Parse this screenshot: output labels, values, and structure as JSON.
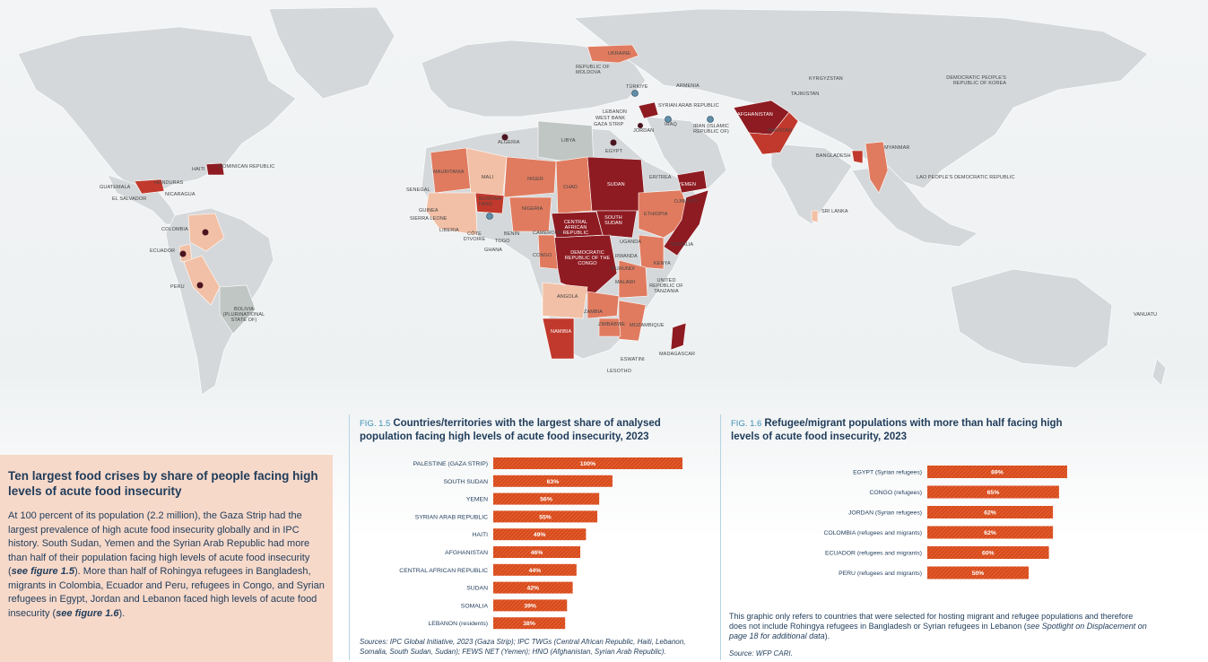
{
  "map": {
    "labels": {
      "ukraine": "UKRAINE",
      "moldova": "REPUBLIC OF MOLDOVA",
      "turkiye": "TÜRKIYE",
      "armenia": "ARMENIA",
      "kyrgyzstan": "KYRGYZSTAN",
      "tajikistan": "TAJIKISTAN",
      "dprk": "DEMOCRATIC PEOPLE'S REPUBLIC OF KOREA",
      "lebanon": "LEBANON",
      "west_bank": "WEST BANK",
      "gaza": "GAZA STRIP",
      "syria": "SYRIAN ARAB REPUBLIC",
      "iraq": "IRAQ",
      "iran": "IRAN (ISLAMIC REPUBLIC OF)",
      "afghanistan": "AFGHANISTAN",
      "pakistan": "PAKISTAN",
      "jordan": "JORDAN",
      "algeria": "ALGERIA",
      "libya": "LIBYA",
      "egypt": "EGYPT",
      "haiti": "HAITI",
      "dominican_republic": "DOMINICAN REPUBLIC",
      "guatemala": "GUATEMALA",
      "honduras": "HONDURAS",
      "el_salvador": "EL SALVADOR",
      "nicaragua": "NICARAGUA",
      "colombia": "COLOMBIA",
      "ecuador": "ECUADOR",
      "peru": "PERU",
      "bolivia": "BOLIVIA (PLURINATIONAL STATE OF)",
      "mauritania": "MAURITANIA",
      "mali": "MALI",
      "niger": "NIGER",
      "chad": "CHAD",
      "sudan": "SUDAN",
      "eritrea": "ERITREA",
      "yemen": "YEMEN",
      "djibouti": "DJIBOUTI",
      "ethiopia": "ETHIOPIA",
      "somalia": "SOMALIA",
      "senegal": "SENEGAL",
      "guinea": "GUINEA",
      "sierra_leone": "SIERRA LEONE",
      "liberia": "LIBERIA",
      "cote_divoire": "CÔTE D'IVOIRE",
      "ghana": "GHANA",
      "togo": "TOGO",
      "benin": "BENIN",
      "burkina_faso": "BURKINA FASO",
      "nigeria": "NIGERIA",
      "cameroon": "CAMEROON",
      "car": "CENTRAL AFRICAN REPUBLIC",
      "south_sudan": "SOUTH SUDAN",
      "uganda": "UGANDA",
      "kenya": "KENYA",
      "rwanda": "RWANDA",
      "burundi": "BURUNDI",
      "drc": "DEMOCRATIC REPUBLIC OF THE CONGO",
      "congo": "CONGO",
      "tanzania": "UNITED REPUBLIC OF TANZANIA",
      "malawi": "MALAWI",
      "angola": "ANGOLA",
      "zambia": "ZAMBIA",
      "zimbabwe": "ZIMBABWE",
      "mozambique": "MOZAMBIQUE",
      "namibia": "NAMIBIA",
      "madagascar": "MADAGASCAR",
      "eswatini": "ESWATINI",
      "lesotho": "LESOTHO",
      "bangladesh": "BANGLADESH",
      "myanmar": "MYANMAR",
      "lao": "LAO PEOPLE'S DEMOCRATIC REPUBLIC",
      "sri_lanka": "SRI LANKA",
      "vanuatu": "VANUATU"
    },
    "colors": {
      "land": "#d5d8da",
      "ocean": "#eef1f2",
      "very_high": "#8e1b22",
      "high": "#c1392c",
      "medium": "#e07b5f",
      "low": "#f2c0a6",
      "no_data": "#bfc6c4"
    }
  },
  "panel": {
    "title": "Ten largest food crises by share of people facing high levels of acute food insecurity",
    "body_1": "At 100 percent of its population (2.2 million), the Gaza Strip had the largest prevalence of high acute food insecurity globally and in IPC history. South Sudan, Yemen and the Syrian Arab Republic had more than half of their population facing high levels of acute food insecurity (",
    "body_ref_1": "see figure 1.5",
    "body_2": "). More than half of Rohingya refugees in Bangladesh, migrants in Colombia, Ecuador and Peru, refugees in Congo, and Syrian refugees in Egypt, Jordan and Lebanon faced high levels of acute food insecurity (",
    "body_ref_2": "see figure 1.6",
    "body_3": ")."
  },
  "fig15": {
    "num": "FIG. 1.5",
    "title": "Countries/territories with the largest share of analysed population facing high levels of acute food insecurity, 2023",
    "source": "Sources: IPC Global Initiative, 2023 (Gaza Strip); IPC TWGs (Central African Republic, Haiti, Lebanon, Somalia, South Sudan, Sudan); FEWS NET (Yemen); HNO (Afghanistan, Syrian Arab Republic)."
  },
  "fig16": {
    "num": "FIG. 1.6",
    "title": "Refugee/migrant populations with more than half facing high levels of acute food insecurity, 2023",
    "note_1": "This graphic only refers to countries that were selected for hosting migrant and refugee populations and therefore does not include Rohingya refugees in Bangladesh or Syrian refugees in Lebanon (",
    "note_ref": "see Spotlight on Displacement on page 18 for additional data",
    "note_2": ").",
    "source": "Source: WFP CARI."
  },
  "chart_data": [
    {
      "type": "bar",
      "orientation": "horizontal",
      "title": "Countries/territories with the largest share of analysed population facing high levels of acute food insecurity, 2023",
      "categories": [
        "PALESTINE (GAZA STRIP)",
        "SOUTH SUDAN",
        "YEMEN",
        "SYRIAN ARAB REPUBLIC",
        "HAITI",
        "AFGHANISTAN",
        "CENTRAL AFRICAN REPUBLIC",
        "SUDAN",
        "SOMALIA",
        "LEBANON (residents)"
      ],
      "values": [
        100,
        63,
        56,
        55,
        49,
        46,
        44,
        42,
        39,
        38
      ],
      "value_labels": [
        "100%",
        "63%",
        "56%",
        "55%",
        "49%",
        "46%",
        "44%",
        "42%",
        "39%",
        "38%"
      ],
      "xlim": [
        0,
        100
      ],
      "bar_color": "#d84a1b"
    },
    {
      "type": "bar",
      "orientation": "horizontal",
      "title": "Refugee/migrant populations with more than half facing high levels of acute food insecurity, 2023",
      "categories": [
        "EGYPT (Syrian refugees)",
        "CONGO (refugees)",
        "JORDAN (Syrian refugees)",
        "COLOMBIA (refugees and migrants)",
        "ECUADOR (refugees and migrants)",
        "PERU (refugees and migrants)"
      ],
      "values": [
        69,
        65,
        62,
        62,
        60,
        50
      ],
      "value_labels": [
        "69%",
        "65%",
        "62%",
        "62%",
        "60%",
        "50%"
      ],
      "xlim": [
        0,
        100
      ],
      "bar_color": "#d84a1b"
    }
  ]
}
